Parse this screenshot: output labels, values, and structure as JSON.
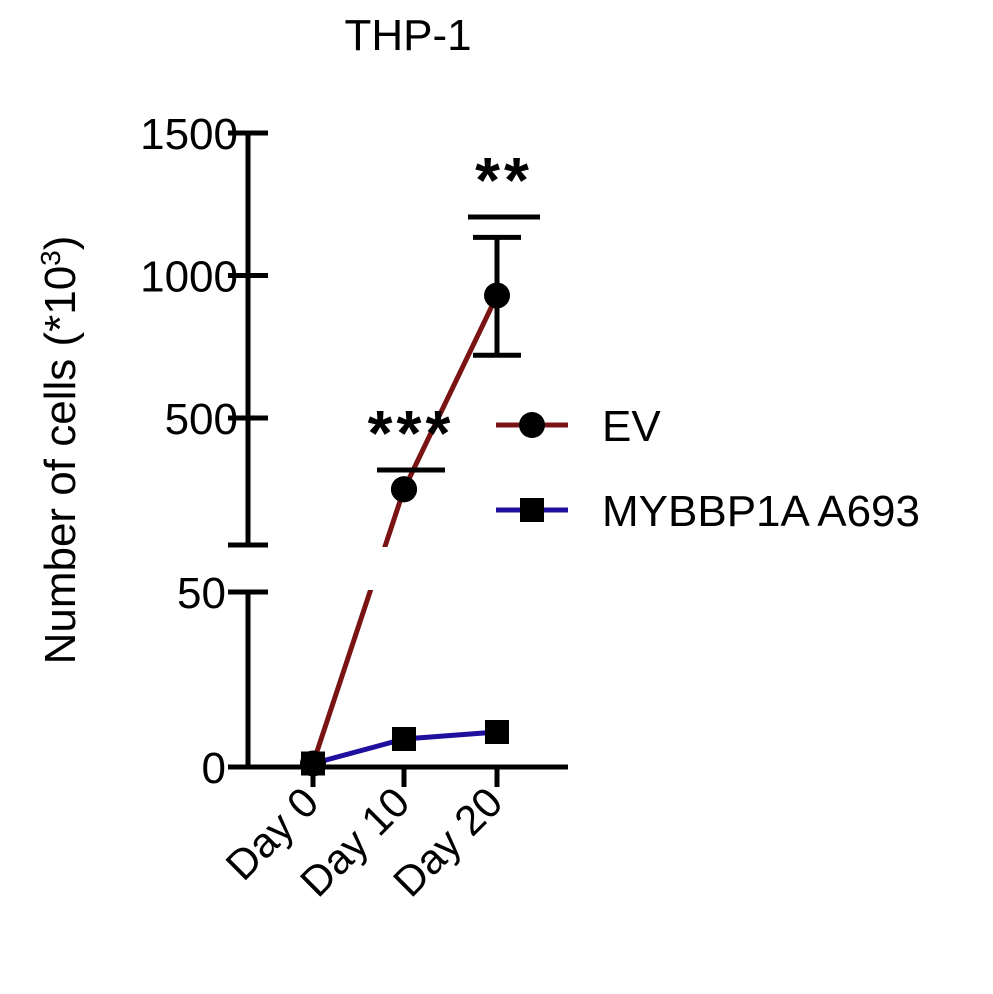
{
  "chart_data": {
    "type": "line",
    "title": "THP-1",
    "ylabel_main": "Number of cells (*10",
    "ylabel_sup": "3",
    "ylabel_close": ")",
    "xlabel": "",
    "categories": [
      "Day 0",
      "Day 10",
      "Day 20"
    ],
    "axis_break": {
      "lower_range": [
        0,
        60
      ],
      "upper_range": [
        250,
        1500
      ],
      "lower_ticks": [
        "0",
        "50"
      ],
      "upper_ticks": [
        "500",
        "1000",
        "1500"
      ]
    },
    "series": [
      {
        "name": "EV",
        "marker": "circle",
        "color": "#7a1414",
        "values": [
          1,
          250,
          930
        ],
        "error": [
          0,
          0,
          210
        ]
      },
      {
        "name": "MYBBP1A A693",
        "marker": "square",
        "color": "#1e0f9e",
        "values": [
          1,
          8,
          10
        ],
        "error": [
          0,
          0,
          0
        ]
      }
    ],
    "annotations": [
      {
        "text": "***",
        "category": "Day 10"
      },
      {
        "text": "**",
        "category": "Day 20"
      }
    ],
    "legend_position": "right",
    "grid": false
  }
}
